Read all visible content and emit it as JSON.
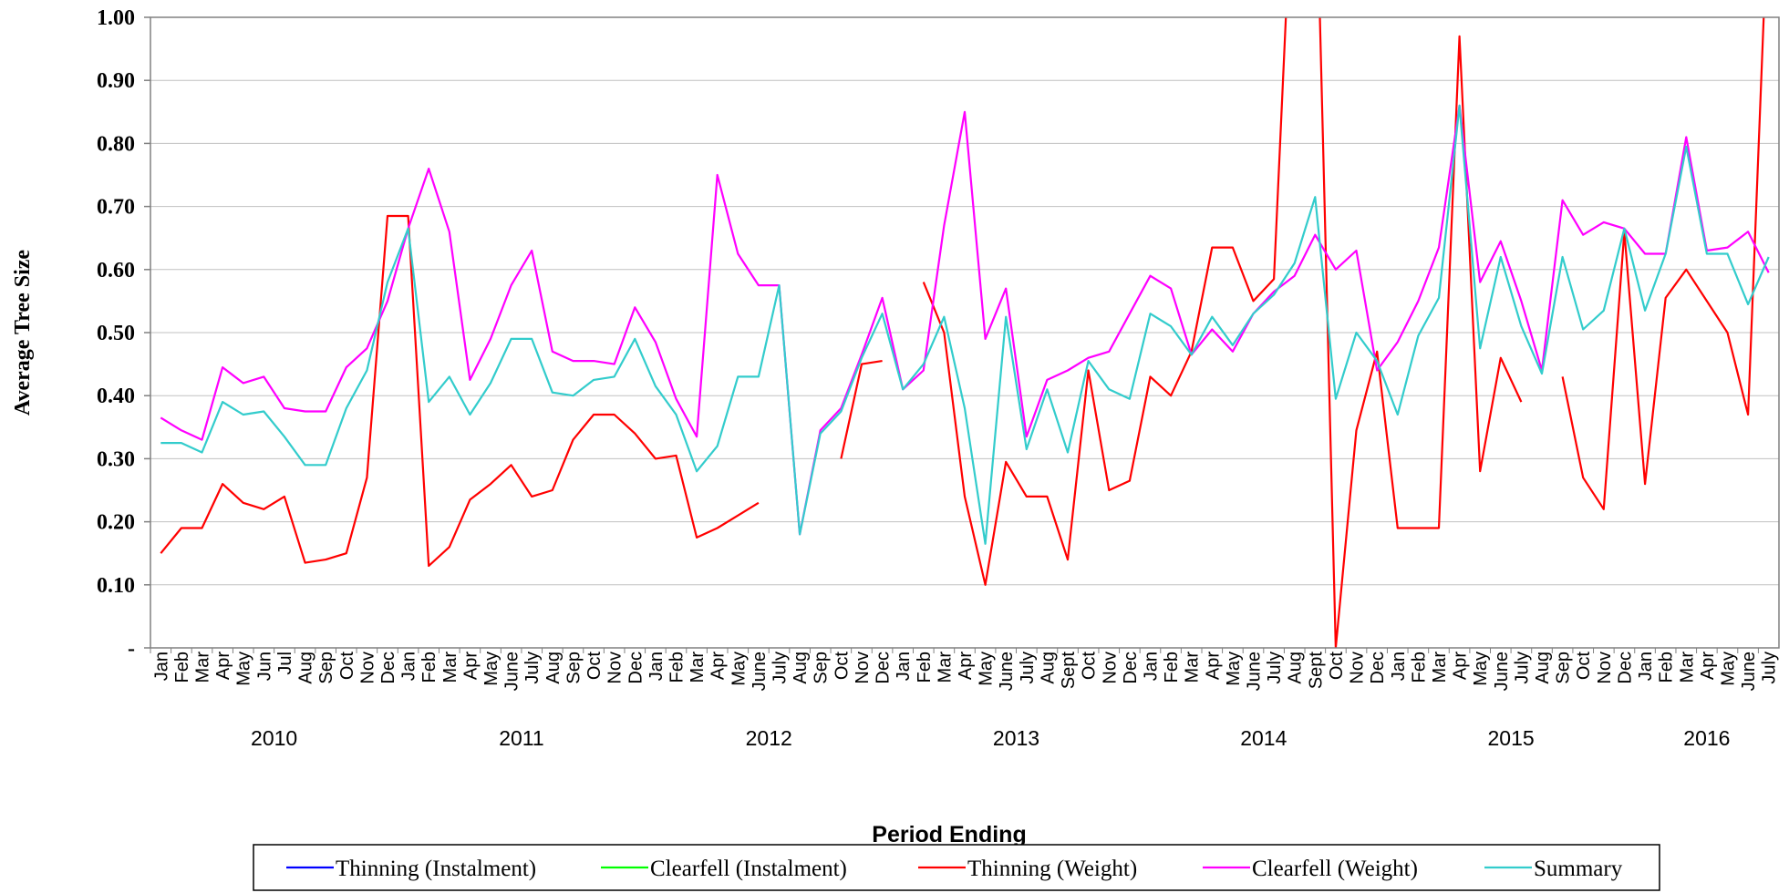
{
  "chart_data": {
    "type": "line",
    "y_label": "Average Tree Size",
    "x_label": "Period Ending",
    "categories": [
      "Jan",
      "Feb",
      "Mar",
      "Apr",
      "May",
      "Jun",
      "Jul",
      "Aug",
      "Sep",
      "Oct",
      "Nov",
      "Dec",
      "Jan",
      "Feb",
      "Mar",
      "Apr",
      "May",
      "June",
      "July",
      "Aug",
      "Sep",
      "Oct",
      "Nov",
      "Dec",
      "Jan",
      "Feb",
      "Mar",
      "Apr",
      "May",
      "June",
      "July",
      "Aug",
      "Sep",
      "Oct",
      "Nov",
      "Dec",
      "Jan",
      "Feb",
      "Mar",
      "Apr",
      "May",
      "June",
      "July",
      "Aug",
      "Sept",
      "Oct",
      "Nov",
      "Dec",
      "Jan",
      "Feb",
      "Mar",
      "Apr",
      "May",
      "June",
      "July",
      "Aug",
      "Sept",
      "Oct",
      "Nov",
      "Dec",
      "Jan",
      "Feb",
      "Mar",
      "Apr",
      "May",
      "June",
      "July",
      "Aug",
      "Sep",
      "Oct",
      "Nov",
      "Dec",
      "Jan",
      "Feb",
      "Mar",
      "Apr",
      "May",
      "June",
      "July"
    ],
    "category_years": [
      "2010",
      "2010",
      "2010",
      "2010",
      "2010",
      "2010",
      "2010",
      "2010",
      "2010",
      "2010",
      "2010",
      "2010",
      "2011",
      "2011",
      "2011",
      "2011",
      "2011",
      "2011",
      "2011",
      "2011",
      "2011",
      "2011",
      "2011",
      "2011",
      "2012",
      "2012",
      "2012",
      "2012",
      "2012",
      "2012",
      "2012",
      "2012",
      "2012",
      "2012",
      "2012",
      "2012",
      "2013",
      "2013",
      "2013",
      "2013",
      "2013",
      "2013",
      "2013",
      "2013",
      "2013",
      "2013",
      "2013",
      "2013",
      "2014",
      "2014",
      "2014",
      "2014",
      "2014",
      "2014",
      "2014",
      "2014",
      "2014",
      "2014",
      "2014",
      "2014",
      "2015",
      "2015",
      "2015",
      "2015",
      "2015",
      "2015",
      "2015",
      "2015",
      "2015",
      "2015",
      "2015",
      "2015",
      "2016",
      "2016",
      "2016",
      "2016",
      "2016",
      "2016",
      "2016"
    ],
    "ylim": [
      0,
      1
    ],
    "yticks": [
      {
        "value": 0,
        "label": "-"
      },
      {
        "value": 0.1,
        "label": "0.10"
      },
      {
        "value": 0.2,
        "label": "0.20"
      },
      {
        "value": 0.3,
        "label": "0.30"
      },
      {
        "value": 0.4,
        "label": "0.40"
      },
      {
        "value": 0.5,
        "label": "0.50"
      },
      {
        "value": 0.6,
        "label": "0.60"
      },
      {
        "value": 0.7,
        "label": "0.70"
      },
      {
        "value": 0.8,
        "label": "0.80"
      },
      {
        "value": 0.9,
        "label": "0.90"
      },
      {
        "value": 1,
        "label": "1.00"
      }
    ],
    "grid": true,
    "legend": "bottom",
    "series": [
      {
        "name": "Thinning (Instalment)",
        "color": "#0000ff",
        "values": [
          null,
          null,
          null,
          null,
          null,
          null,
          null,
          null,
          null,
          null,
          null,
          null,
          null,
          null,
          null,
          null,
          null,
          null,
          null,
          null,
          null,
          null,
          null,
          null,
          null,
          null,
          null,
          null,
          null,
          null,
          null,
          null,
          null,
          null,
          null,
          null,
          null,
          null,
          null,
          null,
          null,
          null,
          null,
          null,
          null,
          null,
          null,
          null,
          null,
          null,
          null,
          null,
          null,
          null,
          null,
          null,
          null,
          null,
          null,
          null,
          null,
          null,
          null,
          null,
          null,
          null,
          null,
          null,
          null,
          null,
          null,
          null,
          null,
          null,
          null,
          null,
          null,
          null,
          null
        ]
      },
      {
        "name": "Clearfell (Instalment)",
        "color": "#00ff00",
        "values": [
          null,
          null,
          null,
          null,
          null,
          null,
          null,
          null,
          null,
          null,
          null,
          null,
          null,
          null,
          null,
          null,
          null,
          null,
          null,
          null,
          null,
          null,
          null,
          null,
          null,
          null,
          null,
          null,
          null,
          null,
          null,
          null,
          null,
          null,
          null,
          null,
          null,
          null,
          null,
          null,
          null,
          null,
          null,
          null,
          null,
          null,
          null,
          null,
          null,
          null,
          null,
          null,
          null,
          null,
          null,
          null,
          null,
          null,
          null,
          null,
          null,
          null,
          null,
          null,
          null,
          null,
          null,
          null,
          null,
          null,
          null,
          null,
          null,
          null,
          null,
          null,
          null,
          null,
          null
        ]
      },
      {
        "name": "Thinning (Weight)",
        "color": "#ff0000",
        "values": [
          0.15,
          0.19,
          0.19,
          0.26,
          0.23,
          0.22,
          0.24,
          0.135,
          0.14,
          0.15,
          0.27,
          0.685,
          0.685,
          0.13,
          0.16,
          0.235,
          0.26,
          0.29,
          0.24,
          0.25,
          0.33,
          0.37,
          0.37,
          0.34,
          0.3,
          0.305,
          0.175,
          0.19,
          0.21,
          0.23,
          null,
          null,
          null,
          0.3,
          0.45,
          0.455,
          null,
          0.58,
          0.5,
          0.24,
          0.1,
          0.295,
          0.24,
          0.24,
          0.14,
          0.44,
          0.25,
          0.265,
          0.43,
          0.4,
          0.47,
          0.635,
          0.635,
          0.55,
          0.585,
          1.3,
          1.3,
          0.0,
          0.345,
          0.47,
          0.19,
          0.19,
          0.19,
          0.97,
          0.28,
          0.46,
          0.39,
          null,
          0.43,
          0.27,
          0.22,
          0.66,
          0.26,
          0.555,
          0.6,
          0.55,
          0.5,
          0.37,
          1.2
        ]
      },
      {
        "name": "Clearfell (Weight)",
        "color": "#ff00ff",
        "values": [
          0.365,
          0.345,
          0.33,
          0.445,
          0.42,
          0.43,
          0.38,
          0.375,
          0.375,
          0.445,
          0.475,
          0.55,
          0.665,
          0.76,
          0.66,
          0.425,
          0.49,
          0.575,
          0.63,
          0.47,
          0.455,
          0.455,
          0.45,
          0.54,
          0.485,
          0.395,
          0.335,
          0.75,
          0.625,
          0.575,
          0.575,
          0.18,
          0.345,
          0.38,
          0.465,
          0.555,
          0.41,
          0.44,
          0.67,
          0.85,
          0.49,
          0.57,
          0.335,
          0.425,
          0.44,
          0.46,
          0.47,
          0.53,
          0.59,
          0.57,
          0.465,
          0.505,
          0.47,
          0.53,
          0.565,
          0.59,
          0.655,
          0.6,
          0.63,
          0.44,
          0.485,
          0.55,
          0.635,
          0.86,
          0.58,
          0.645,
          0.55,
          0.44,
          0.71,
          0.655,
          0.675,
          0.665,
          0.625,
          0.625,
          0.81,
          0.63,
          0.635,
          0.66,
          0.595
        ]
      },
      {
        "name": "Summary",
        "color": "#33cccc",
        "values": [
          0.325,
          0.325,
          0.31,
          0.39,
          0.37,
          0.375,
          0.335,
          0.29,
          0.29,
          0.38,
          0.44,
          0.58,
          0.665,
          0.39,
          0.43,
          0.37,
          0.42,
          0.49,
          0.49,
          0.405,
          0.4,
          0.425,
          0.43,
          0.49,
          0.415,
          0.37,
          0.28,
          0.32,
          0.43,
          0.43,
          0.575,
          0.18,
          0.34,
          0.375,
          0.46,
          0.53,
          0.41,
          0.45,
          0.525,
          0.38,
          0.165,
          0.525,
          0.315,
          0.41,
          0.31,
          0.455,
          0.41,
          0.395,
          0.53,
          0.51,
          0.465,
          0.525,
          0.48,
          0.53,
          0.56,
          0.61,
          0.715,
          0.395,
          0.5,
          0.455,
          0.37,
          0.495,
          0.555,
          0.86,
          0.475,
          0.62,
          0.51,
          0.435,
          0.62,
          0.505,
          0.535,
          0.665,
          0.535,
          0.625,
          0.795,
          0.625,
          0.625,
          0.545,
          0.62
        ]
      }
    ]
  }
}
